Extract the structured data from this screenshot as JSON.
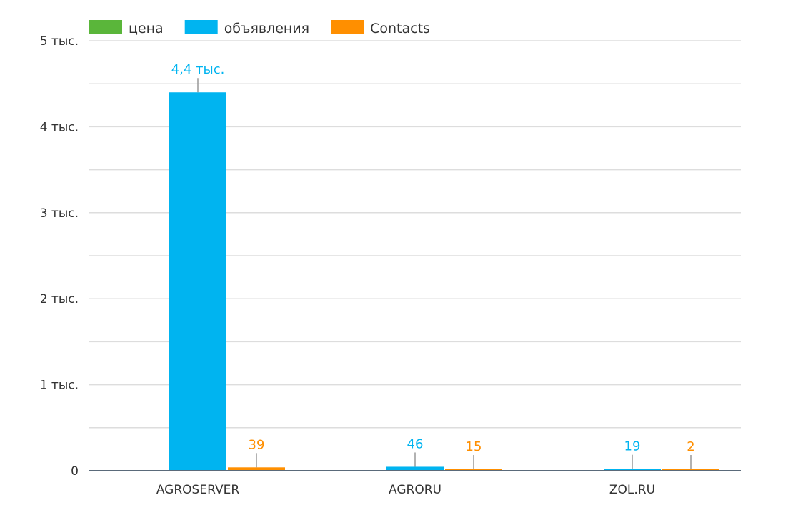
{
  "chart_data": {
    "type": "bar",
    "categories": [
      "AGROSERVER",
      "AGRORU",
      "ZOL.RU"
    ],
    "series": [
      {
        "name": "цена",
        "color": "#5ab63a",
        "values": [
          0,
          0,
          0
        ],
        "labels": [
          null,
          null,
          null
        ]
      },
      {
        "name": "объявления",
        "color": "#00b4f0",
        "values": [
          4400,
          46,
          19
        ],
        "labels": [
          "4,4 тыс.",
          "46",
          "19"
        ]
      },
      {
        "name": "Contacts",
        "color": "#ff8f00",
        "values": [
          39,
          15,
          2
        ],
        "labels": [
          "39",
          "15",
          "2"
        ]
      }
    ],
    "ylim": [
      0,
      5000
    ],
    "yticks": [
      {
        "value": 0,
        "label": "0"
      },
      {
        "value": 1000,
        "label": "1 тыс."
      },
      {
        "value": 2000,
        "label": "2 тыс."
      },
      {
        "value": 3000,
        "label": "3 тыс."
      },
      {
        "value": 4000,
        "label": "4 тыс."
      },
      {
        "value": 5000,
        "label": "5 тыс."
      }
    ],
    "minor_gridlines": [
      500,
      1500,
      2500,
      3500,
      4500
    ],
    "grid": true,
    "legend": "top-left",
    "colors": {
      "grid": "#dddddd",
      "axis": "#5a6a7a",
      "text": "#333333",
      "leader": "#999999"
    }
  }
}
